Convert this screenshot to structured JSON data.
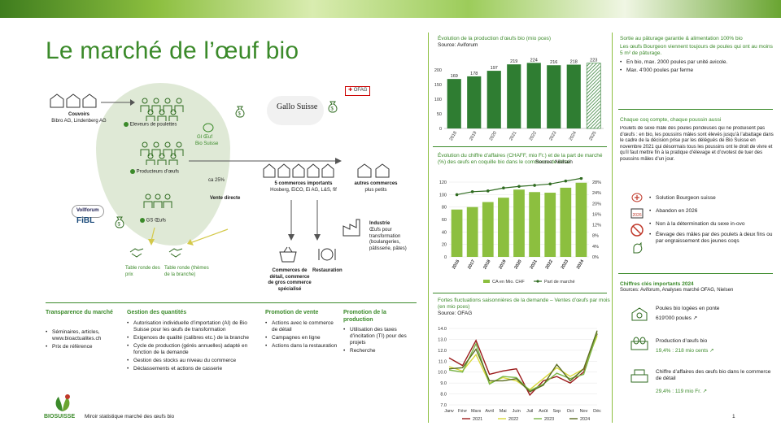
{
  "page": {
    "title": "Le marché de l’œuf bio",
    "footer_text": "Miroir statistique marché des œufs bio",
    "page_number": "1",
    "logo_text": "BIOSUISSE",
    "accent": "#3b8a2a",
    "accent_light": "#8cbf3f",
    "blob_color": "#dfe9d6"
  },
  "flow": {
    "couvoirs_title": "Couvoirs",
    "couvoirs_sub": "Bibro AG, Lindenberg AG",
    "eleveurs": "Eleveurs de poulettes",
    "producteurs": "Producteurs d’œufs",
    "gs": "GS Œufs",
    "gi_oeuf": "GI Œuf",
    "bio_suisse_small": "Bio Suisse",
    "ofag": "OFAG",
    "gallo": "Gallo Suisse",
    "ca_pct": "ca 25%",
    "vente_directe": "Vente directe",
    "commerces_title": "5 commerces importants",
    "commerces_sub": "Hosberg, EiCO, Ei AG, L&S, fif",
    "autres_title": "autres commerces",
    "autres_sub": "plus petits",
    "industrie_title": "Industrie",
    "industrie_sub": "Œufs pour transformation (boulangeries, pâtisserie, pâtes)",
    "commerce_detail": "Commerces de détail, commerce de gros commerce spécialisé",
    "restauration": "Restauration",
    "table_prix": "Table ronde des prix",
    "table_ronde_branche": "Table ronde (thèmes de la branche)",
    "vollforum": "Vollforum",
    "fibl": "FiBL"
  },
  "bottom": {
    "transparence": {
      "title": "Transparence du marché",
      "items": [
        "Séminaires, articles, www.bioactualites.ch",
        "Prix de référence"
      ]
    },
    "gestion": {
      "title": "Gestion des quantités",
      "items": [
        "Autorisation individuelle d’importation (AI) de Bio Suisse pour les œufs de transformation",
        "Exigences de qualité (calibres etc.) de la branche",
        "Cycle de production (gérés annuelles) adapté en fonction de la demande",
        "Gestion des stocks au niveau du commerce",
        "Déclassements et actions de casserie"
      ]
    },
    "promo_vente": {
      "title": "Promotion de vente",
      "items": [
        "Actions avec le commerce de détail",
        "Campagnes en ligne",
        "Actions dans la restauration"
      ]
    },
    "promo_prod": {
      "title": "Promotion de la production",
      "items": [
        "Utilisation des taxes d’incitation (TI) pour des projets",
        "Recherche"
      ]
    }
  },
  "chart_data": [
    {
      "type": "bar",
      "title": "Évolution de la production d’œufs bio (mio pces)",
      "subtitle": "Source: Aviforum",
      "categories": [
        "2018",
        "2019",
        "2020",
        "2021",
        "2022",
        "2023",
        "2024",
        "2025"
      ],
      "values": [
        169,
        178,
        197,
        219,
        224,
        216,
        218,
        223
      ],
      "forecast_index": 7,
      "ylim": [
        0,
        250
      ],
      "yticks": [
        0,
        50,
        100,
        150,
        200
      ],
      "color": "#2f7d32"
    },
    {
      "type": "bar",
      "title": "Évolution du chiffre d’affaires (CHAFF, mio Fr.) et de la part de marché (%) des œufs en coquille bio dans le commerce de détail",
      "subtitle": "Source: Nielsen",
      "categories": [
        "2016",
        "2017",
        "2018",
        "2019",
        "2020",
        "2021",
        "2022",
        "2023",
        "2024"
      ],
      "series": [
        {
          "name": "CA en Mio. CHF",
          "values": [
            76,
            80,
            88,
            95,
            108,
            104,
            103,
            111,
            119
          ]
        },
        {
          "name": "Part de marché",
          "values": [
            23.3,
            24.4,
            24.7,
            25.8,
            26.4,
            26.8,
            27.3,
            28.4,
            29.4
          ]
        }
      ],
      "ylim": [
        0,
        120
      ],
      "yticks": [
        0,
        20,
        40,
        60,
        80,
        100,
        120
      ],
      "y2lim": [
        0,
        28
      ],
      "y2ticks": [
        "0%",
        "4%",
        "8%",
        "12%",
        "16%",
        "20%",
        "24%",
        "28%"
      ],
      "legend": "bottom",
      "bar_color": "#8cbf3f",
      "line_color": "#2f6b20"
    },
    {
      "type": "line",
      "title": "Fortes fluctuations saisonnières de la demande – Ventes d’œufs par mois (en mio pces)",
      "subtitle": "Source: OFAG",
      "categories": [
        "Janv",
        "Févr",
        "Mars",
        "Avril",
        "Mai",
        "Juin",
        "Juil",
        "Août",
        "Sep",
        "Oct",
        "Nov",
        "Déc"
      ],
      "series": [
        {
          "name": "2021",
          "color": "#9b1b1b",
          "values": [
            11.3,
            10.6,
            12.9,
            9.8,
            10.1,
            10.3,
            7.9,
            9.2,
            9.6,
            9.0,
            10.0,
            13.5
          ]
        },
        {
          "name": "2022",
          "color": "#d9d93a",
          "values": [
            10.5,
            10.1,
            11.6,
            9.0,
            9.5,
            9.2,
            8.4,
            9.4,
            10.4,
            9.6,
            10.3,
            13.3
          ]
        },
        {
          "name": "2023",
          "color": "#7ab648",
          "values": [
            10.2,
            10.0,
            12.6,
            8.9,
            9.6,
            9.5,
            8.3,
            8.9,
            9.9,
            9.4,
            9.8,
            13.6
          ]
        },
        {
          "name": "2024",
          "color": "#5a6b20",
          "values": [
            10.3,
            10.4,
            12.1,
            9.2,
            9.2,
            9.4,
            8.2,
            8.8,
            10.7,
            9.2,
            10.3,
            13.8
          ]
        }
      ],
      "ylim": [
        7,
        14
      ],
      "yticks": [
        "7.0",
        "8.0",
        "9.0",
        "10.0",
        "11.0",
        "12.0",
        "13.0",
        "14.0"
      ],
      "legend": "bottom"
    }
  ],
  "right": {
    "box1": {
      "title": "Sortie au pâturage garantie & alimentation 100% bio",
      "intro": "Les œufs Bourgeon viennent toujours de poules qui ont au moins 5 m² de pâturage.",
      "items": [
        "En bio, max. 2000 poules par unité avicole.",
        "Max. 4'000 poules par ferme"
      ]
    },
    "box2": {
      "title": "Chaque coq compte, chaque poussin aussi",
      "text": "Poulets de sexe mâle des poules pondeuses qui ne produisent pas d’œufs : en bio, les poussins mâles sont élevés jusqu’à l’abattage dans le cadre de la décision prise par les délégués de Bio Suisse en novembre 2021 qui désormais tous les poussins ont le droit de vivre et qu’il faut mettre fin à la pratique d’élevage et d’ovotest de tuer des poussins mâles d’un jour.",
      "items": [
        "Solution Bourgeon suisse",
        "Abandon en 2026",
        "Non à la détermination du sexe in-ovo",
        "Élevage des mâles par des poulets à deux fins ou par engraissement des jeunes coqs"
      ]
    },
    "box3": {
      "title": "Chiffres clés importants 2024",
      "source": "Sources: Aviforum, Analyses marché OFAG, Nielsen",
      "k1_label": "Poules bio logées en ponte",
      "k1_value": "619'000 poules ↗",
      "k2_label": "Production d’œufs bio",
      "k2_value": "19,4% : 218 mio cents ↗",
      "k3_label": "Chiffre d’affaires des œufs bio dans le commerce de détail",
      "k3_value": "29,4% : 119 mio Fr. ↗"
    }
  }
}
